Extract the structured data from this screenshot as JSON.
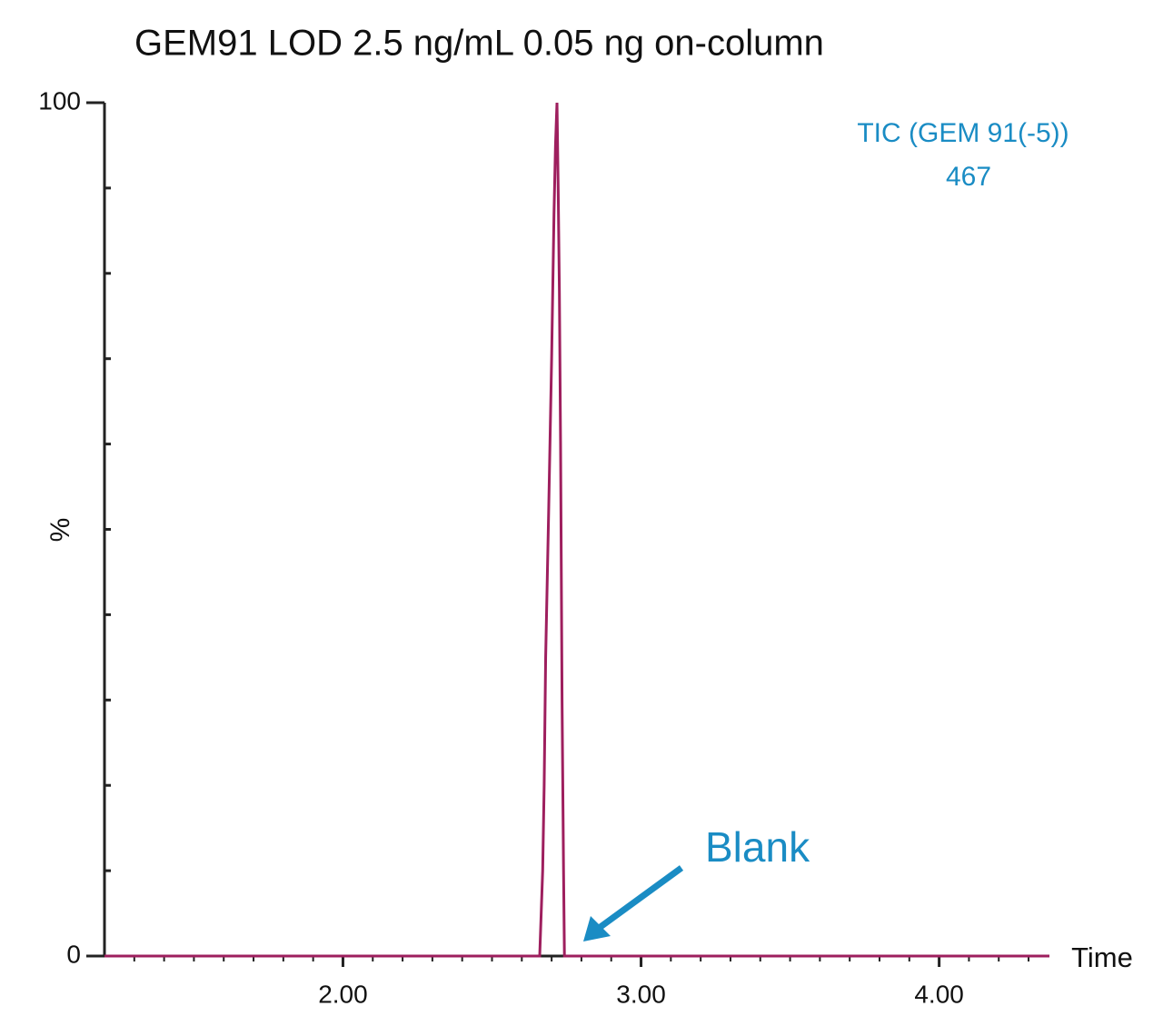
{
  "chart_data": {
    "type": "line",
    "title": "GEM91 LOD 2.5 ng/mL 0.05 ng on-column",
    "x_label": "Time",
    "y_label": "%",
    "annotations": [
      "TIC (GEM 91(-5))",
      "467",
      "Blank"
    ],
    "annotation_color": "#1a8cc4",
    "series": [
      {
        "color": "#9e1f5e",
        "x": [
          1.2,
          2.66,
          2.665,
          2.67,
          2.675,
          2.68,
          2.69,
          2.7,
          2.708,
          2.713,
          2.718,
          2.722,
          2.726,
          2.73,
          2.735,
          2.74,
          2.743,
          4.37
        ],
        "values": [
          0,
          0,
          5,
          10,
          20,
          35,
          52,
          70,
          87,
          95,
          100,
          90,
          78,
          60,
          30,
          10,
          0,
          0
        ]
      }
    ],
    "xlim": [
      1.2,
      4.37
    ],
    "ylim": [
      0,
      100
    ],
    "xticks": [
      {
        "value": 2,
        "label": "2.00"
      },
      {
        "value": 3,
        "label": "3.00"
      },
      {
        "value": 4,
        "label": "4.00"
      }
    ],
    "yticks": [
      0,
      100
    ],
    "xminorticks": [
      1.3,
      1.4,
      1.5,
      1.6,
      1.7,
      1.8,
      1.9,
      2.1,
      2.2,
      2.3,
      2.4,
      2.5,
      2.6,
      2.7,
      2.8,
      2.9,
      3.1,
      3.2,
      3.3,
      3.4,
      3.5,
      3.6,
      3.7,
      3.8,
      3.9,
      4.1,
      4.2,
      4.3
    ],
    "yminorticks": [
      10,
      20,
      30,
      40,
      50,
      60,
      70,
      80,
      90
    ]
  }
}
